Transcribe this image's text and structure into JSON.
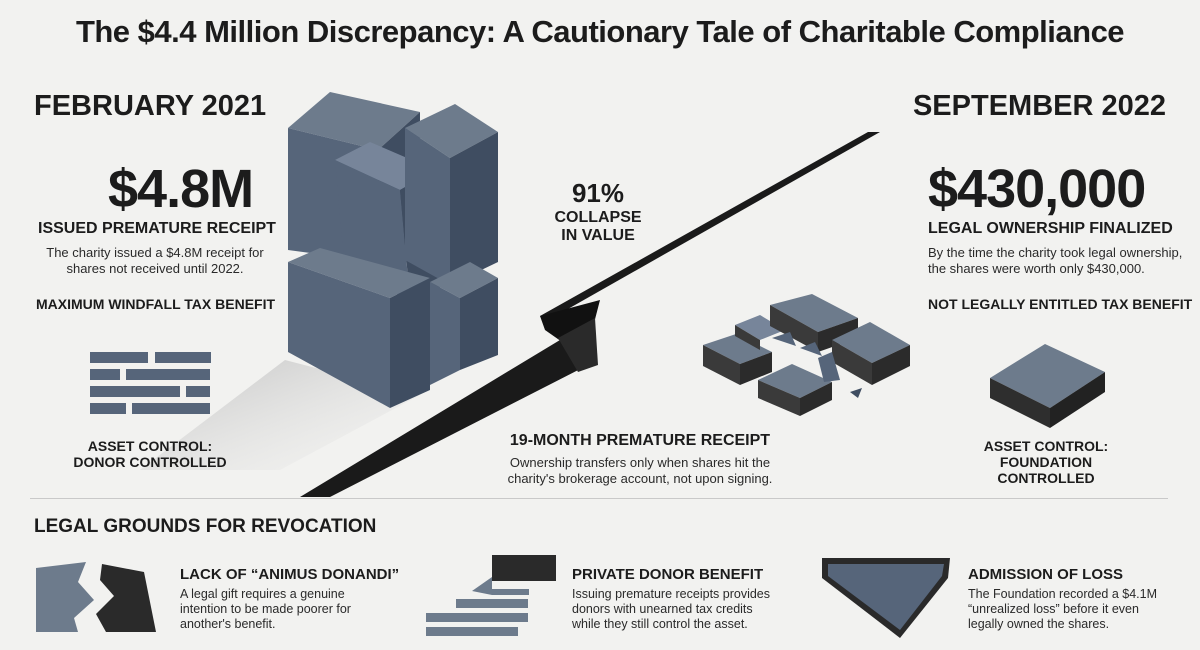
{
  "title": "The $4.4 Million Discrepancy: A Cautionary Tale of Charitable Compliance",
  "left": {
    "date": "FEBRUARY 2021",
    "amount": "$4.8M",
    "subtitle": "ISSUED PREMATURE RECEIPT",
    "description_line1": "The charity issued a $4.8M receipt for",
    "description_line2": "shares not received until 2022.",
    "benefit": "MAXIMUM WINDFALL TAX BENEFIT",
    "control_line1": "ASSET CONTROL:",
    "control_line2": "DONOR CONTROLLED"
  },
  "center": {
    "percent": "91%",
    "collapse_line1": "COLLAPSE",
    "collapse_line2": "IN VALUE",
    "receipt_title": "19-MONTH PREMATURE RECEIPT",
    "receipt_line1": "Ownership transfers only when shares hit the",
    "receipt_line2": "charity's brokerage account, not upon signing."
  },
  "right": {
    "date": "SEPTEMBER 2022",
    "amount": "$430,000",
    "subtitle": "LEGAL OWNERSHIP FINALIZED",
    "description_line1": "By the time the charity took legal ownership,",
    "description_line2": "the shares were worth only $430,000.",
    "benefit": "NOT LEGALLY ENTITLED TAX BENEFIT",
    "control_line1": "ASSET CONTROL:",
    "control_line2": "FOUNDATION CONTROLLED"
  },
  "legal": {
    "heading": "LEGAL GROUNDS FOR REVOCATION",
    "items": [
      {
        "icon": "broken-shape-icon",
        "title": "LACK OF “ANIMUS DONANDI”",
        "line1": "A legal gift requires a genuine",
        "line2": "intention to be made poorer for",
        "line3": "another's benefit."
      },
      {
        "icon": "transfer-arrow-icon",
        "title": "PRIVATE DONOR BENEFIT",
        "line1": "Issuing premature receipts provides",
        "line2": "donors with unearned tax credits",
        "line3": "while they still control the asset."
      },
      {
        "icon": "loss-slab-icon",
        "title": "ADMISSION OF LOSS",
        "line1": "The Foundation recorded a $4.1M",
        "line2": "“unrealized loss” before it even",
        "line3": "legally owned the shares."
      }
    ]
  },
  "colors": {
    "block_top": "#6d7b8c",
    "block_left": "#56657a",
    "block_right": "#3f4d61",
    "crack": "#1a1a1a"
  }
}
